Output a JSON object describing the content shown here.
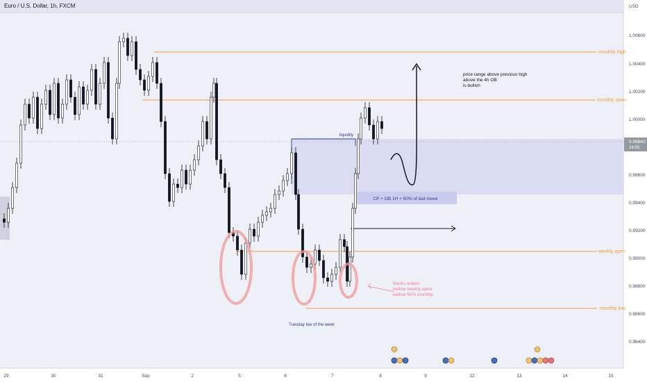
{
  "header": {
    "symbol_title": "Euro / U.S. Dollar, 1h, FXCM",
    "currency": "USD"
  },
  "price_axis": {
    "ticks": [
      "1.00600",
      "1.00400",
      "1.00200",
      "1.00000",
      "0.99600",
      "0.99400",
      "0.99200",
      "0.99000",
      "0.98800",
      "0.98600",
      "0.98400"
    ],
    "current_price": "0.99840",
    "countdown": "24:55"
  },
  "date_axis": {
    "ticks": [
      "29",
      "30",
      "31",
      "Sep",
      "2",
      "5",
      "6",
      "7",
      "8",
      "9",
      "12",
      "13",
      "14",
      "15"
    ]
  },
  "levels": {
    "monthly_high": "monthly high",
    "monthly_open": "monthly open",
    "weekly_open": "weekly open",
    "monthly_low": "monthly low"
  },
  "annotations": {
    "liquidity": "liquidity",
    "zone_label": "CP + OB 1H + 50% of last move",
    "price_note": [
      "price range above previous high",
      "above the 4h OB",
      "is bullish"
    ],
    "banks_note": [
      "Banks orders",
      "bellow weekly open",
      "bellow 50% monthly"
    ],
    "tuesday_low": "Tuesday low of the week"
  },
  "colors": {
    "up_candle": "#ffffff",
    "down_candle": "#131722",
    "level_line": "#f59d3c",
    "zone_fill": "#c5c8ee",
    "liquidity_line": "#2a3a8c",
    "circle": "#ef9a9a",
    "background": "#e8eaf6"
  },
  "icons": [
    "calendar-flag-icon",
    "us-flag-icon",
    "eu-flag-icon"
  ]
}
